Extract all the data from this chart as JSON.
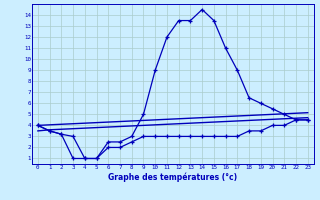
{
  "title": "Graphe des températures (°c)",
  "background_color": "#cceeff",
  "line_color": "#0000bb",
  "x_hours": [
    0,
    1,
    2,
    3,
    4,
    5,
    6,
    7,
    8,
    9,
    10,
    11,
    12,
    13,
    14,
    15,
    16,
    17,
    18,
    19,
    20,
    21,
    22,
    23
  ],
  "temp_main": [
    4.0,
    3.5,
    3.2,
    3.0,
    1.0,
    1.0,
    2.5,
    2.5,
    3.0,
    5.0,
    9.0,
    12.0,
    13.5,
    13.5,
    14.5,
    13.5,
    11.0,
    9.0,
    6.5,
    6.0,
    5.5,
    5.0,
    4.5,
    4.5
  ],
  "temp_low": [
    4.0,
    3.5,
    3.2,
    1.0,
    1.0,
    1.0,
    2.0,
    2.0,
    2.5,
    3.0,
    3.0,
    3.0,
    3.0,
    3.0,
    3.0,
    3.0,
    3.0,
    3.0,
    3.5,
    3.5,
    4.0,
    4.0,
    4.5,
    4.5
  ],
  "temp_reg1": [
    3.5,
    3.6,
    3.65,
    3.7,
    3.75,
    3.8,
    3.85,
    3.9,
    3.95,
    4.0,
    4.05,
    4.1,
    4.15,
    4.2,
    4.25,
    4.3,
    4.35,
    4.4,
    4.45,
    4.5,
    4.55,
    4.6,
    4.65,
    4.7
  ],
  "temp_reg2": [
    4.0,
    4.05,
    4.1,
    4.15,
    4.2,
    4.25,
    4.3,
    4.35,
    4.4,
    4.45,
    4.5,
    4.55,
    4.6,
    4.65,
    4.7,
    4.75,
    4.8,
    4.85,
    4.9,
    4.95,
    5.0,
    5.05,
    5.1,
    5.15
  ],
  "ylim": [
    0.5,
    15.0
  ],
  "yticks": [
    1,
    2,
    3,
    4,
    5,
    6,
    7,
    8,
    9,
    10,
    11,
    12,
    13,
    14
  ],
  "xlim": [
    -0.5,
    23.5
  ],
  "xticks": [
    0,
    1,
    2,
    3,
    4,
    5,
    6,
    7,
    8,
    9,
    10,
    11,
    12,
    13,
    14,
    15,
    16,
    17,
    18,
    19,
    20,
    21,
    22,
    23
  ],
  "grid_color": "#aacccc",
  "marker": "+",
  "markersize": 3.0,
  "linewidth": 0.9
}
